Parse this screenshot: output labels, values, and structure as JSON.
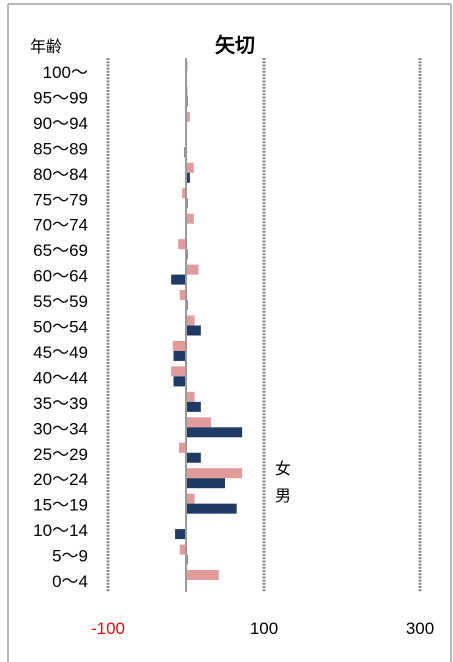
{
  "chart_data": {
    "type": "bar",
    "orientation": "horizontal",
    "title": "矢切",
    "ylabel": "年齢",
    "xlabel": "",
    "categories": [
      "100〜",
      "95〜99",
      "90〜94",
      "85〜89",
      "80〜84",
      "75〜79",
      "70〜74",
      "65〜69",
      "60〜64",
      "55〜59",
      "50〜54",
      "45〜49",
      "40〜44",
      "35〜39",
      "30〜34",
      "25〜29",
      "20〜24",
      "15〜19",
      "10〜14",
      "5〜9",
      "0〜4"
    ],
    "series": [
      {
        "name": "女",
        "color": "#e39a9a",
        "values": [
          2,
          2,
          5,
          -1,
          10,
          -5,
          10,
          -10,
          16,
          -8,
          11,
          -17,
          -19,
          11,
          32,
          -9,
          72,
          11,
          0,
          -8,
          42
        ]
      },
      {
        "name": "男",
        "color": "#1f3a64",
        "values": [
          1,
          2,
          0,
          -2,
          5,
          2,
          0,
          2,
          -19,
          2,
          19,
          -16,
          -16,
          19,
          72,
          19,
          50,
          65,
          -14,
          2,
          0
        ]
      }
    ],
    "xlim": [
      -100,
      300
    ],
    "xticks": [
      -100,
      100,
      300
    ],
    "tick_label_colors": [
      "#ff0000",
      "#000000",
      "#000000"
    ],
    "grid": true,
    "gridline_color": "#8c8c8c",
    "zero_line_color": "#9a9a9a",
    "legend": "inside-right"
  }
}
